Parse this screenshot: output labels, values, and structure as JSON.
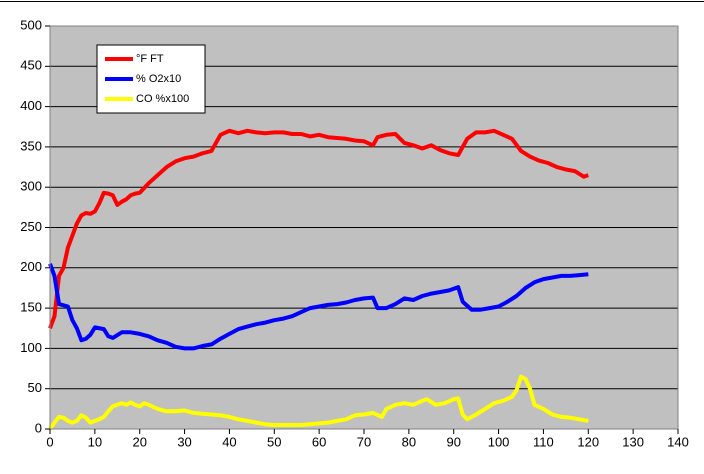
{
  "chart_data": {
    "type": "line",
    "xlim": [
      0,
      140
    ],
    "xticks": [
      0,
      10,
      20,
      30,
      40,
      50,
      60,
      70,
      80,
      90,
      100,
      110,
      120,
      130,
      140
    ],
    "ylim": [
      0,
      500
    ],
    "yticks": [
      0,
      50,
      100,
      150,
      200,
      250,
      300,
      350,
      400,
      450,
      500
    ],
    "grid": true,
    "legend": "upper-left",
    "series": [
      {
        "name": "°F FT",
        "color": "#ff0000",
        "x": [
          0,
          1,
          2,
          3,
          4,
          5,
          6,
          7,
          8,
          9,
          10,
          11,
          12,
          13,
          14,
          15,
          16,
          17,
          18,
          19,
          20,
          22,
          24,
          26,
          28,
          30,
          32,
          34,
          36,
          38,
          40,
          42,
          44,
          46,
          48,
          50,
          52,
          54,
          56,
          58,
          60,
          62,
          64,
          66,
          68,
          70,
          72,
          73,
          75,
          77,
          79,
          81,
          83,
          85,
          87,
          89,
          91,
          93,
          95,
          97,
          99,
          101,
          103,
          105,
          107,
          109,
          111,
          113,
          115,
          117,
          119,
          120
        ],
        "values": [
          125,
          140,
          190,
          200,
          225,
          240,
          255,
          265,
          268,
          267,
          270,
          280,
          293,
          292,
          290,
          278,
          282,
          285,
          290,
          292,
          293,
          305,
          315,
          325,
          332,
          336,
          338,
          342,
          345,
          365,
          370,
          367,
          370,
          368,
          367,
          368,
          368,
          366,
          366,
          363,
          365,
          362,
          361,
          360,
          358,
          357,
          352,
          362,
          365,
          366,
          355,
          352,
          348,
          352,
          346,
          342,
          340,
          360,
          368,
          368,
          370,
          365,
          360,
          345,
          338,
          333,
          330,
          325,
          322,
          320,
          313,
          315
        ]
      },
      {
        "name": "% O2x10",
        "color": "#0000ff",
        "x": [
          0,
          1,
          2,
          4,
          5,
          6,
          7,
          8,
          9,
          10,
          12,
          13,
          14,
          16,
          18,
          20,
          22,
          24,
          26,
          28,
          30,
          32,
          34,
          36,
          38,
          40,
          42,
          44,
          46,
          48,
          50,
          52,
          54,
          56,
          58,
          60,
          62,
          64,
          66,
          68,
          70,
          72,
          73,
          75,
          77,
          79,
          81,
          83,
          85,
          87,
          89,
          91,
          92,
          94,
          96,
          98,
          100,
          102,
          104,
          106,
          108,
          110,
          112,
          114,
          116,
          118,
          120
        ],
        "values": [
          205,
          190,
          155,
          152,
          135,
          125,
          110,
          112,
          117,
          126,
          124,
          115,
          113,
          120,
          120,
          118,
          115,
          110,
          107,
          102,
          100,
          100,
          103,
          105,
          112,
          118,
          124,
          127,
          130,
          132,
          135,
          137,
          140,
          145,
          150,
          152,
          154,
          155,
          157,
          160,
          162,
          163,
          150,
          150,
          155,
          162,
          160,
          165,
          168,
          170,
          172,
          176,
          158,
          148,
          148,
          150,
          152,
          158,
          165,
          175,
          182,
          186,
          188,
          190,
          190,
          191,
          192
        ]
      },
      {
        "name": "CO %x100",
        "color": "#ffff00",
        "x": [
          0,
          1,
          2,
          3,
          4,
          5,
          6,
          7,
          8,
          9,
          10,
          11,
          12,
          13,
          14,
          15,
          16,
          17,
          18,
          19,
          20,
          21,
          22,
          24,
          26,
          28,
          30,
          32,
          34,
          36,
          38,
          40,
          42,
          44,
          46,
          48,
          50,
          52,
          54,
          56,
          58,
          60,
          62,
          64,
          66,
          68,
          70,
          72,
          74,
          75,
          77,
          79,
          81,
          83,
          84,
          86,
          88,
          90,
          91,
          92,
          93,
          95,
          97,
          99,
          101,
          103,
          104,
          105,
          106,
          107,
          108,
          110,
          112,
          114,
          116,
          118,
          120
        ],
        "values": [
          0,
          8,
          15,
          14,
          10,
          8,
          10,
          17,
          14,
          8,
          10,
          12,
          15,
          22,
          28,
          30,
          32,
          30,
          33,
          30,
          28,
          32,
          30,
          25,
          22,
          22,
          23,
          20,
          19,
          18,
          17,
          15,
          12,
          10,
          8,
          6,
          5,
          5,
          5,
          5,
          6,
          7,
          8,
          10,
          12,
          17,
          18,
          20,
          15,
          25,
          30,
          32,
          30,
          35,
          37,
          30,
          32,
          37,
          38,
          18,
          12,
          18,
          25,
          32,
          35,
          40,
          48,
          65,
          62,
          50,
          30,
          25,
          18,
          15,
          14,
          12,
          10
        ]
      }
    ]
  }
}
